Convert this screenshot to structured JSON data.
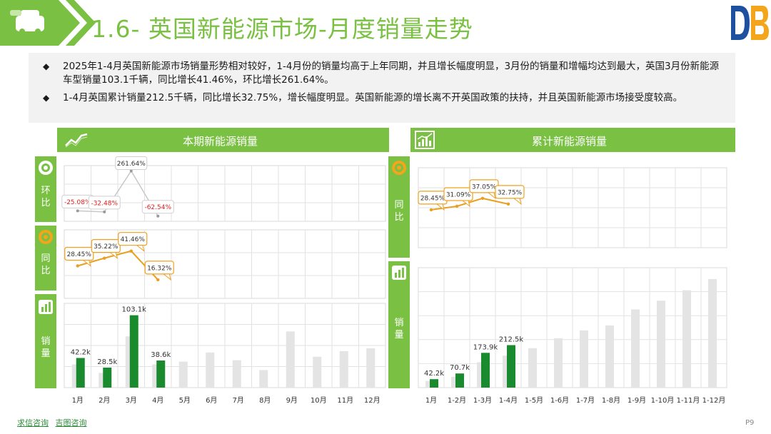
{
  "title": "1.6- 英国新能源市场-月度销量走势",
  "bullets": [
    "2025年1-4月英国新能源市场销量形势相对较好，1-4月份的销量均高于上年同期，并且增长幅度明显，3月份的销量和增幅均达到最大，英国3月份新能源车型销量103.1千辆，同比增长41.46%，环比增长261.64%。",
    "1-4月英国累计销量212.5千辆，同比增长32.75%，增长幅度明显。英国新能源的增长离不开英国政策的扶持，并且英国新能源市场接受度较高。"
  ],
  "left_panel": {
    "header": "本期新能源销量",
    "tabs": {
      "mom": "环比",
      "yoy": "同比",
      "sales": "销量"
    }
  },
  "right_panel": {
    "header": "累计新能源销量",
    "tabs": {
      "yoy": "同比",
      "sales": "销量"
    }
  },
  "footer": {
    "link1": "求信咨询",
    "link2": "吉图咨询",
    "page": "P9"
  },
  "icons": [
    "car-icon",
    "brand-logo",
    "trend-icon",
    "chart-icon",
    "bar-icon"
  ],
  "colors": {
    "accent": "#7ac143",
    "bar_current": "#1a8a2e",
    "bar_prev": "#e4e4e4",
    "line": "#e8a020",
    "callout_border": "#f0a020",
    "negative": "#e02020"
  },
  "chart_data": [
    {
      "type": "bar",
      "id": "monthly-sales",
      "categories": [
        "1月",
        "2月",
        "3月",
        "4月",
        "5月",
        "6月",
        "7月",
        "8月",
        "9月",
        "10月",
        "11月",
        "12月"
      ],
      "series": [
        {
          "values": [
            42.2,
            28.5,
            103.1,
            38.6,
            null,
            null,
            null,
            null,
            null,
            null,
            null,
            null
          ]
        },
        {
          "values": [
            33,
            21,
            73,
            33,
            37,
            50,
            39,
            25,
            80,
            44,
            52,
            56
          ]
        }
      ],
      "data_labels": [
        "42.2k",
        "28.5k",
        "103.1k",
        "38.6k"
      ],
      "ylim": [
        0,
        120
      ]
    },
    {
      "type": "line",
      "id": "monthly-yoy",
      "categories": [
        "1月",
        "2月",
        "3月",
        "4月"
      ],
      "values": [
        28.45,
        35.22,
        41.46,
        16.32
      ],
      "labels": [
        "28.45%",
        "35.22%",
        "41.46%",
        "16.32%"
      ],
      "ylim": [
        0,
        60
      ]
    },
    {
      "type": "line",
      "id": "monthly-mom",
      "categories": [
        "1月",
        "2月",
        "3月",
        "4月"
      ],
      "values": [
        -25.08,
        -32.48,
        261.64,
        -62.54
      ],
      "labels": [
        "-25.08%",
        "-32.48%",
        "261.64%",
        "-62.54%"
      ],
      "ylim": [
        -100,
        300
      ]
    },
    {
      "type": "bar",
      "id": "cumulative-sales",
      "categories": [
        "1月",
        "1-2月",
        "1-3月",
        "1-4月",
        "1-5月",
        "1-6月",
        "1-7月",
        "1-8月",
        "1-9月",
        "1-10月",
        "1-11月",
        "1-12月"
      ],
      "series": [
        {
          "values": [
            42.2,
            70.7,
            173.9,
            212.5,
            null,
            null,
            null,
            null,
            null,
            null,
            null,
            null
          ]
        },
        {
          "values": [
            33,
            54,
            127,
            160,
            197,
            247,
            286,
            311,
            391,
            435,
            487,
            543
          ]
        }
      ],
      "data_labels": [
        "42.2k",
        "70.7k",
        "173.9k",
        "212.5k"
      ],
      "ylim": [
        0,
        600
      ]
    },
    {
      "type": "line",
      "id": "cumulative-yoy",
      "categories": [
        "1月",
        "1-2月",
        "1-3月",
        "1-4月"
      ],
      "values": [
        28.45,
        31.09,
        37.05,
        32.75
      ],
      "labels": [
        "28.45%",
        "31.09%",
        "37.05%",
        "32.75%"
      ],
      "ylim": [
        0,
        60
      ]
    }
  ]
}
